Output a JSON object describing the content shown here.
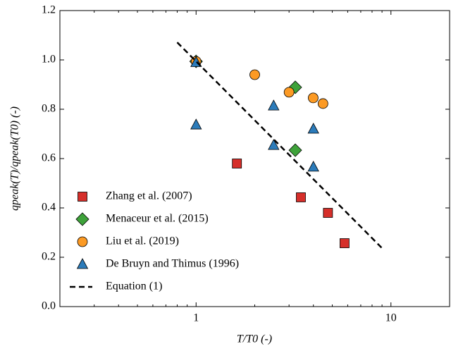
{
  "chart_data": {
    "type": "scatter",
    "x_label": "T/T0 (-)",
    "y_label": "qpeak(T)/qpeak(T0) (-)",
    "xlim": [
      0.2,
      20
    ],
    "ylim": [
      0,
      1.2
    ],
    "x_log": true,
    "xticks": [
      1,
      10
    ],
    "x_minor_ticks": [
      0.2,
      0.3,
      0.4,
      0.5,
      0.6,
      0.7,
      0.8,
      0.9,
      2,
      3,
      4,
      5,
      6,
      7,
      8,
      9,
      20
    ],
    "yticks": [
      {
        "value": 0,
        "label": "0.0"
      },
      0.2,
      0.4,
      0.6,
      0.8,
      {
        "value": 1,
        "label": "1.0"
      },
      1.2
    ],
    "legend": "lower left",
    "series": [
      {
        "name": "Zhang et al. (2007)",
        "color": "#d62f2a",
        "marker": "square",
        "x": [
          1.62,
          3.45,
          4.75,
          5.78
        ],
        "values": [
          0.58,
          0.443,
          0.38,
          0.257
        ]
      },
      {
        "name": "Menaceur et al. (2015)",
        "color": "#3ea23a",
        "marker": "diamond",
        "x": [
          1.0,
          3.23,
          3.23
        ],
        "values": [
          0.994,
          0.889,
          0.634
        ]
      },
      {
        "name": "Liu et al. (2019)",
        "color": "#fc9a24",
        "marker": "circle",
        "x": [
          1.0,
          2.0,
          3.0,
          3.99,
          4.48
        ],
        "values": [
          0.994,
          0.94,
          0.869,
          0.846,
          0.823
        ]
      },
      {
        "name": "De Bruyn and Thimus (1996)",
        "color": "#2b7bba",
        "marker": "triangle",
        "x": [
          1.0,
          1.0,
          2.5,
          2.5,
          4.0,
          4.0
        ],
        "values": [
          0.99,
          0.737,
          0.814,
          0.654,
          0.72,
          0.566
        ]
      },
      {
        "name": "Equation (1)",
        "color": "#000000",
        "marker": "dashed-line",
        "x": [
          0.8,
          9
        ],
        "values": [
          1.071,
          0.237
        ]
      }
    ]
  }
}
